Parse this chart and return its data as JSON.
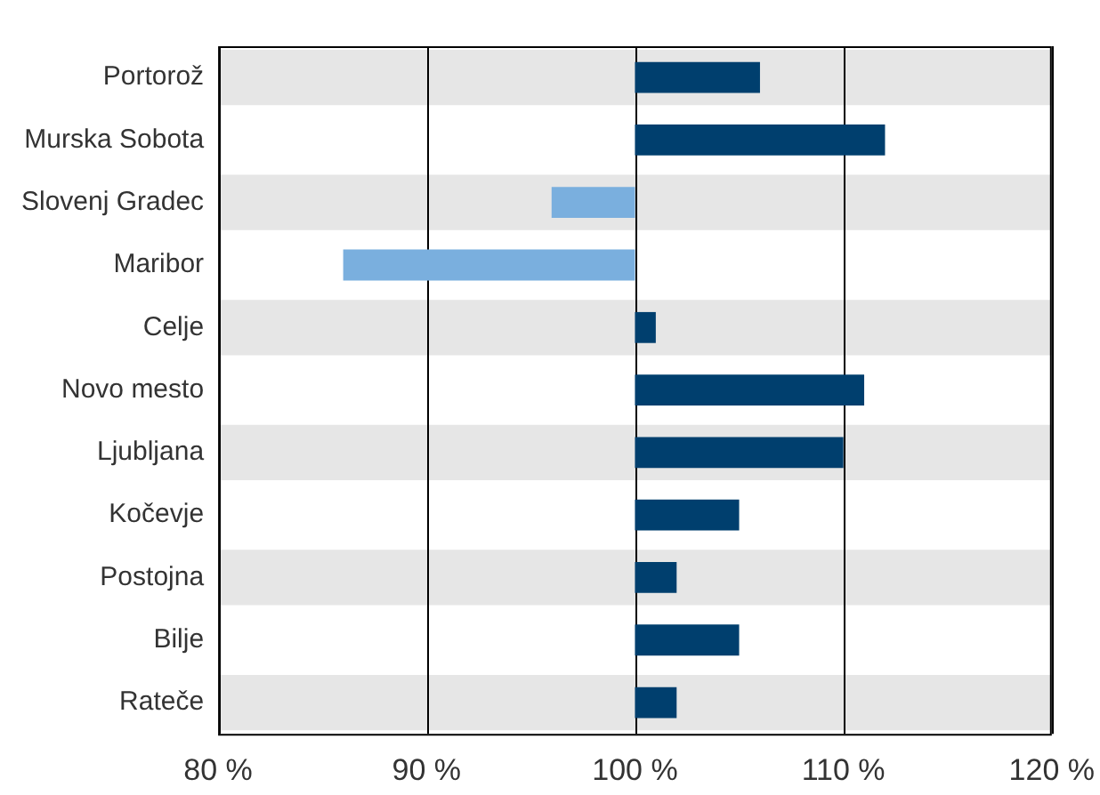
{
  "chart_data": {
    "type": "bar",
    "orientation": "horizontal",
    "categories": [
      "Portorož",
      "Murska Sobota",
      "Slovenj Gradec",
      "Maribor",
      "Celje",
      "Novo mesto",
      "Ljubljana",
      "Kočevje",
      "Postojna",
      "Bilje",
      "Rateče"
    ],
    "base": [
      100,
      100,
      100,
      100,
      100,
      100,
      100,
      100,
      100,
      100,
      100
    ],
    "values": [
      6,
      12,
      -4,
      -14,
      1,
      11,
      10,
      5,
      2,
      5,
      2
    ],
    "colors": [
      "#003f6e",
      "#003f6e",
      "#7aafde",
      "#7aafde",
      "#003f6e",
      "#003f6e",
      "#003f6e",
      "#003f6e",
      "#003f6e",
      "#003f6e",
      "#003f6e"
    ],
    "xlim": [
      80,
      120
    ],
    "xticks": [
      {
        "value": 80,
        "label": "80 %"
      },
      {
        "value": 90,
        "label": "90 %"
      },
      {
        "value": 100,
        "label": "100 %"
      },
      {
        "value": 110,
        "label": "110 %"
      },
      {
        "value": 120,
        "label": "120 %"
      }
    ],
    "grid": "x",
    "legend": false
  }
}
